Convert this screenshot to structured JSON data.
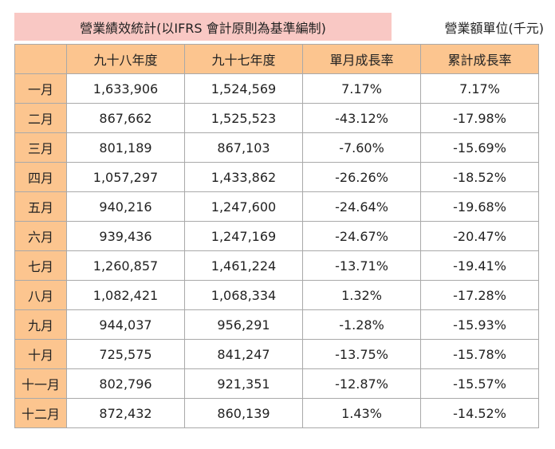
{
  "header": {
    "title": "營業績效統計(以IFRS 會計原則為基準編制)",
    "unit": "營業額單位(千元)"
  },
  "table": {
    "columns": [
      "",
      "九十八年度",
      "九十七年度",
      "單月成長率",
      "累計成長率"
    ],
    "rows": [
      {
        "month": "一月",
        "y98": "1,633,906",
        "y97": "1,524,569",
        "monthly_growth": "7.17%",
        "cumulative_growth": "7.17%"
      },
      {
        "month": "二月",
        "y98": "867,662",
        "y97": "1,525,523",
        "monthly_growth": "-43.12%",
        "cumulative_growth": "-17.98%"
      },
      {
        "month": "三月",
        "y98": "801,189",
        "y97": "867,103",
        "monthly_growth": "-7.60%",
        "cumulative_growth": "-15.69%"
      },
      {
        "month": "四月",
        "y98": "1,057,297",
        "y97": "1,433,862",
        "monthly_growth": "-26.26%",
        "cumulative_growth": "-18.52%"
      },
      {
        "month": "五月",
        "y98": "940,216",
        "y97": "1,247,600",
        "monthly_growth": "-24.64%",
        "cumulative_growth": "-19.68%"
      },
      {
        "month": "六月",
        "y98": "939,436",
        "y97": "1,247,169",
        "monthly_growth": "-24.67%",
        "cumulative_growth": "-20.47%"
      },
      {
        "month": "七月",
        "y98": "1,260,857",
        "y97": "1,461,224",
        "monthly_growth": "-13.71%",
        "cumulative_growth": "-19.41%"
      },
      {
        "month": "八月",
        "y98": "1,082,421",
        "y97": "1,068,334",
        "monthly_growth": "1.32%",
        "cumulative_growth": "-17.28%"
      },
      {
        "month": "九月",
        "y98": "944,037",
        "y97": "956,291",
        "monthly_growth": "-1.28%",
        "cumulative_growth": "-15.93%"
      },
      {
        "month": "十月",
        "y98": "725,575",
        "y97": "841,247",
        "monthly_growth": "-13.75%",
        "cumulative_growth": "-15.78%"
      },
      {
        "month": "十一月",
        "y98": "802,796",
        "y97": "921,351",
        "monthly_growth": "-12.87%",
        "cumulative_growth": "-15.57%"
      },
      {
        "month": "十二月",
        "y98": "872,432",
        "y97": "860,139",
        "monthly_growth": "1.43%",
        "cumulative_growth": "-14.52%"
      }
    ]
  },
  "colors": {
    "title_background": "#f9c8c4",
    "header_background": "#fcc58f",
    "border": "#a9a9a9"
  }
}
